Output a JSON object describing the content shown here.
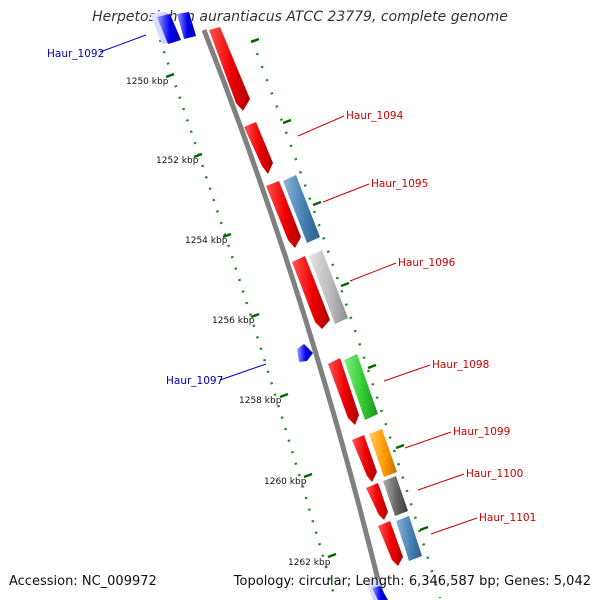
{
  "title": "Herpetosiphon aurantiacus ATCC 23779, complete genome",
  "footer": {
    "accession_label": "Accession:",
    "accession": "NC_009972",
    "topology_label": "Topology:",
    "topology": "circular",
    "length_label": "Length:",
    "length": "6,346,587 bp",
    "genes_label": "Genes:",
    "genes": "5,042"
  },
  "ticks": [
    "1250 kbp",
    "1252 kbp",
    "1254 kbp",
    "1256 kbp",
    "1258 kbp",
    "1260 kbp",
    "1262 kbp"
  ],
  "genes": [
    {
      "label": "Haur_1092",
      "color": "#0000b8",
      "strand": "reverse"
    },
    {
      "label": "Haur_1094",
      "color": "#cc0000",
      "strand": "forward"
    },
    {
      "label": "Haur_1095",
      "color": "#cc0000",
      "strand": "forward"
    },
    {
      "label": "Haur_1096",
      "color": "#cc0000",
      "strand": "forward"
    },
    {
      "label": "Haur_1097",
      "color": "#0000b8",
      "strand": "reverse"
    },
    {
      "label": "Haur_1098",
      "color": "#cc0000",
      "strand": "forward"
    },
    {
      "label": "Haur_1099",
      "color": "#cc0000",
      "strand": "forward"
    },
    {
      "label": "Haur_1100",
      "color": "#cc0000",
      "strand": "forward"
    },
    {
      "label": "Haur_1101",
      "color": "#cc0000",
      "strand": "forward"
    }
  ],
  "colors": {
    "backbone": "#808080",
    "forward_cds": "#ff0000",
    "reverse_cds": "#0000ff",
    "cog_steelblue": "#4682b4",
    "cog_lightgray": "#bbbbbb",
    "cog_green": "#33cc33",
    "cog_orange": "#ff9900",
    "cog_gray": "#666666",
    "tick_green": "#006600"
  }
}
